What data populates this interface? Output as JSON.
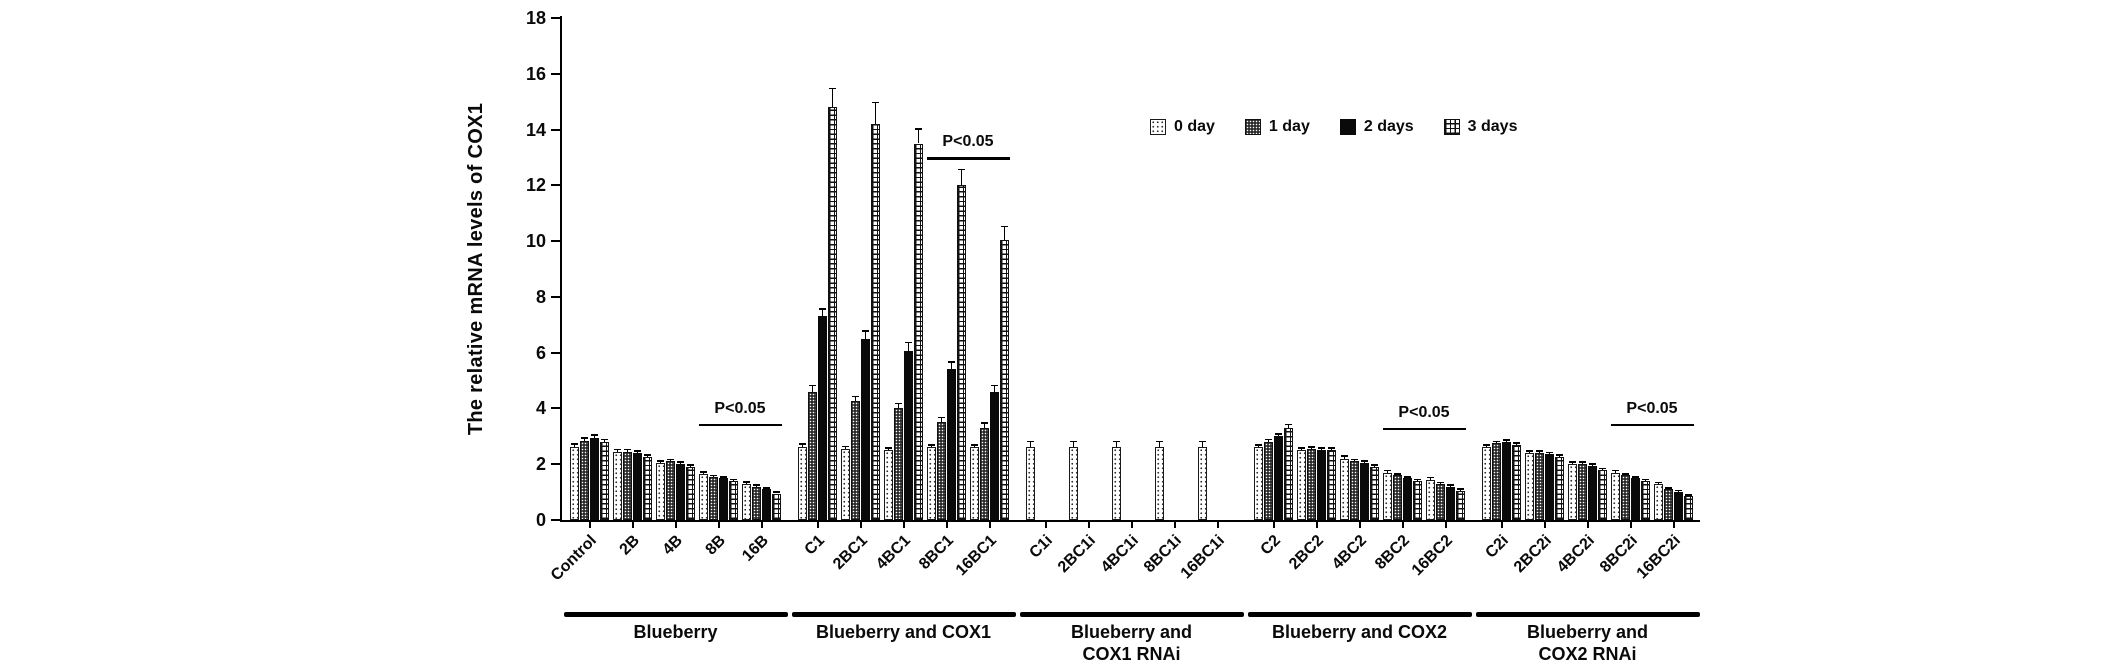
{
  "figure": {
    "background": "#ffffff",
    "axis_color": "#000000"
  },
  "chart_data": {
    "type": "bar",
    "ylabel": "The relative mRNA levels of COX1",
    "xlabel": "",
    "ylim": [
      0,
      18
    ],
    "ytick_step": 2,
    "grid": "off",
    "legend_position": "top-right-inside",
    "categories": [
      "Control",
      "2B",
      "4B",
      "8B",
      "16B",
      "C1",
      "2BC1",
      "4BC1",
      "8BC1",
      "16BC1",
      "C1i",
      "2BC1i",
      "4BC1i",
      "8BC1i",
      "16BC1i",
      "C2",
      "2BC2",
      "4BC2",
      "8BC2",
      "16BC2",
      "C2i",
      "2BC2i",
      "4BC2i",
      "8BC2i",
      "16BC2i"
    ],
    "groups": [
      {
        "label_lines": [
          "Blueberry"
        ],
        "start": 0,
        "end": 4
      },
      {
        "label_lines": [
          "Blueberry and COX1"
        ],
        "start": 5,
        "end": 9
      },
      {
        "label_lines": [
          "Blueberry and",
          "COX1 RNAi"
        ],
        "start": 10,
        "end": 14
      },
      {
        "label_lines": [
          "Blueberry and COX2"
        ],
        "start": 15,
        "end": 19
      },
      {
        "label_lines": [
          "Blueberry and",
          "COX2 RNAi"
        ],
        "start": 20,
        "end": 24
      }
    ],
    "series": [
      {
        "name": "0 day",
        "pattern": "sparse-dots",
        "values": [
          2.6,
          2.45,
          2.05,
          1.65,
          1.3,
          2.6,
          2.55,
          2.5,
          2.6,
          2.6,
          2.6,
          2.6,
          2.6,
          2.6,
          2.6,
          2.6,
          2.5,
          2.2,
          1.7,
          1.45,
          2.6,
          2.4,
          2.0,
          1.7,
          1.3
        ],
        "errors": [
          0.15,
          0.1,
          0.1,
          0.1,
          0.1,
          0.15,
          0.12,
          0.12,
          0.12,
          0.12,
          0.25,
          0.25,
          0.25,
          0.25,
          0.25,
          0.12,
          0.1,
          0.12,
          0.1,
          0.1,
          0.12,
          0.1,
          0.1,
          0.1,
          0.08
        ]
      },
      {
        "name": "1 day",
        "pattern": "dense-dots-dark",
        "values": [
          2.85,
          2.45,
          2.1,
          1.55,
          1.2,
          4.6,
          4.25,
          4.0,
          3.5,
          3.3,
          0,
          0,
          0,
          0,
          0,
          2.8,
          2.55,
          2.1,
          1.6,
          1.3,
          2.75,
          2.4,
          2.0,
          1.6,
          1.1
        ],
        "errors": [
          0.12,
          0.1,
          0.1,
          0.08,
          0.08,
          0.25,
          0.2,
          0.2,
          0.2,
          0.2,
          0,
          0,
          0,
          0,
          0,
          0.12,
          0.1,
          0.1,
          0.08,
          0.08,
          0.1,
          0.1,
          0.1,
          0.08,
          0.08
        ]
      },
      {
        "name": "2 days",
        "pattern": "solid-black",
        "values": [
          2.95,
          2.4,
          2.0,
          1.5,
          1.1,
          7.3,
          6.5,
          6.05,
          5.4,
          4.6,
          0,
          0,
          0,
          0,
          0,
          3.0,
          2.5,
          2.05,
          1.5,
          1.2,
          2.8,
          2.35,
          1.95,
          1.5,
          1.0
        ],
        "errors": [
          0.12,
          0.1,
          0.1,
          0.08,
          0.08,
          0.3,
          0.3,
          0.35,
          0.3,
          0.25,
          0,
          0,
          0,
          0,
          0,
          0.12,
          0.1,
          0.1,
          0.08,
          0.08,
          0.1,
          0.1,
          0.08,
          0.08,
          0.08
        ]
      },
      {
        "name": "3 days",
        "pattern": "grid-checker",
        "values": [
          2.8,
          2.25,
          1.9,
          1.4,
          0.95,
          14.8,
          14.2,
          13.5,
          12.0,
          10.05,
          0,
          0,
          0,
          0,
          0,
          3.3,
          2.5,
          1.9,
          1.4,
          1.05,
          2.7,
          2.25,
          1.8,
          1.4,
          0.85
        ],
        "errors": [
          0.12,
          0.1,
          0.1,
          0.08,
          0.08,
          0.7,
          0.8,
          0.55,
          0.6,
          0.5,
          0,
          0,
          0,
          0,
          0,
          0.15,
          0.1,
          0.1,
          0.08,
          0.08,
          0.1,
          0.1,
          0.08,
          0.08,
          0.08
        ]
      }
    ],
    "annotations": [
      {
        "text": "P<0.05",
        "from": 3,
        "to": 4,
        "y": 3.45
      },
      {
        "text": "P<0.05",
        "from": 8,
        "to": 9,
        "y": 13.0
      },
      {
        "text": "P<0.05",
        "from": 18,
        "to": 19,
        "y": 3.3
      },
      {
        "text": "P<0.05",
        "from": 23,
        "to": 24,
        "y": 3.45
      }
    ],
    "colors": {
      "bar_solid": "#0a0a0a",
      "axis": "#000000",
      "text": "#0a0a0a"
    }
  }
}
